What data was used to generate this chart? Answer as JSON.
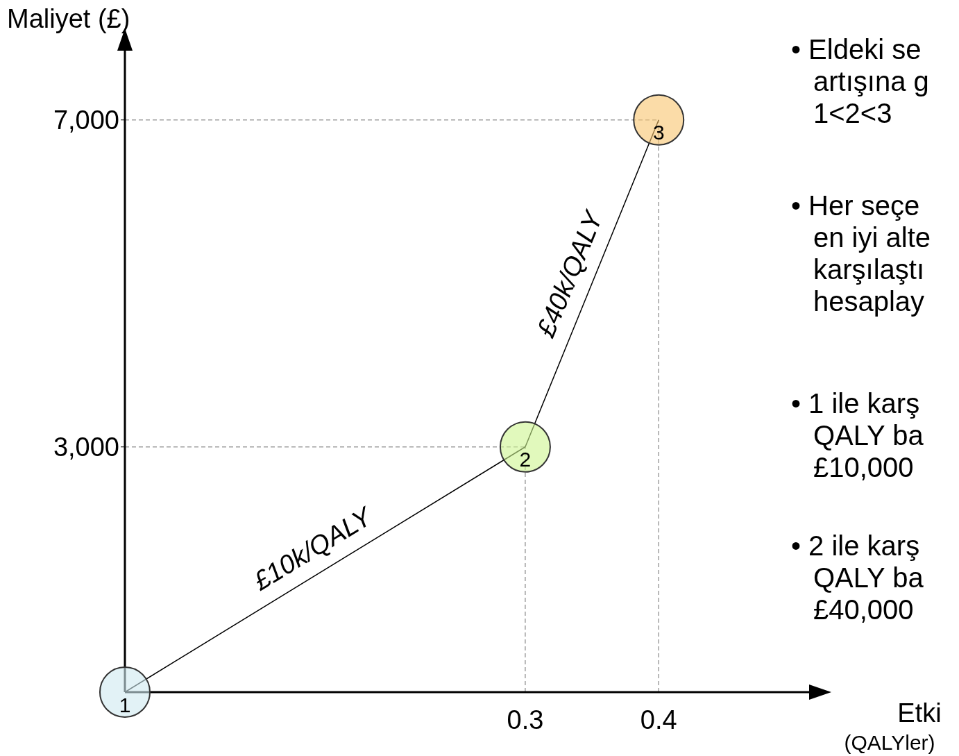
{
  "chart_data": {
    "type": "line",
    "xlabel": "Etki\n(QALYler)",
    "ylabel": "Maliyet (£)",
    "x": [
      0,
      0.3,
      0.4
    ],
    "series": [
      {
        "color": "#000000",
        "values": [
          0,
          3000,
          7000
        ],
        "colors": [
          "#cfe9f0",
          "#cdf58f",
          "#f9c46e"
        ]
      }
    ],
    "line_style": "solid",
    "xlim": [
      0,
      0.52
    ],
    "xticks": [
      0.3,
      0.4
    ],
    "ylim": [
      0,
      8000
    ],
    "yticks": [
      {
        "value": 3000,
        "label": "3,000"
      },
      {
        "value": 7000,
        "label": "7,000"
      }
    ],
    "ref_lines": [
      {
        "axis": "x",
        "value": 0.3,
        "color": "#a0a0a0",
        "line_style": "dashed"
      },
      {
        "axis": "x",
        "value": 0.4,
        "color": "#a0a0a0",
        "line_style": "dashed"
      },
      {
        "axis": "y",
        "value": 3000,
        "color": "#a0a0a0",
        "line_style": "dashed"
      },
      {
        "axis": "y",
        "value": 7000,
        "color": "#a0a0a0",
        "line_style": "dashed"
      }
    ],
    "annotations": [
      {
        "text": "1",
        "x": 0,
        "y": 0
      },
      {
        "text": "2",
        "x": 0.3,
        "y": 3000
      },
      {
        "text": "3",
        "x": 0.4,
        "y": 7000
      },
      {
        "text": "£10k/QALY",
        "x": 0.15,
        "y": 1500
      },
      {
        "text": "£40k/QALY",
        "x": 0.35,
        "y": 5000
      },
      "• Eldeki se\nartışına g\n1<2<3",
      "•  Her seçe\nen iyi alte\nkarşılaştı\nhesaplay",
      "• 1 ile karş\nQALY ba\n£10,000",
      "• 2 ile karş\nQALY ba\n£40,000"
    ]
  }
}
